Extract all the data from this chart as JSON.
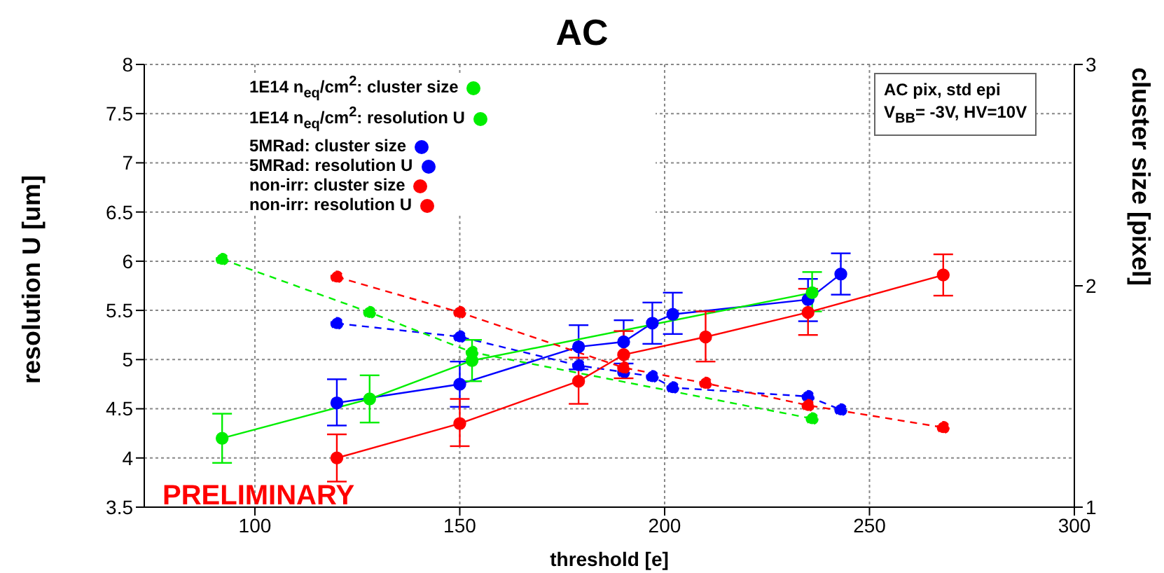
{
  "chart_data": {
    "type": "line",
    "title": "AC",
    "xlabel": "threshold [e]",
    "ylabel": "resolution U [um]",
    "y2label": "cluster size [pixel]",
    "xlim": [
      73,
      300
    ],
    "xticks": [
      100,
      150,
      200,
      250,
      300
    ],
    "ylim": [
      3.5,
      8
    ],
    "yticks": [
      3.5,
      4,
      4.5,
      5,
      5.5,
      6,
      6.5,
      7,
      7.5,
      8
    ],
    "y2lim": [
      1,
      3
    ],
    "y2ticks": [
      1,
      2,
      3
    ],
    "grid": true,
    "legend": "top",
    "marker": "circle",
    "annotations": [
      "AC pix, std epi",
      "V$_{BB}$= -3V, HV=10V",
      "PRELIMINARY"
    ],
    "series": [
      {
        "name": "non-irr: resolution U",
        "color": "#ff0000",
        "line_style": "solid",
        "x": [
          120,
          150,
          179,
          190,
          210,
          235,
          268
        ],
        "values": [
          4.0,
          4.35,
          4.78,
          5.05,
          5.23,
          5.48,
          5.86
        ],
        "errors": [
          [
            3.76,
            4.24
          ],
          [
            4.12,
            4.6
          ],
          [
            4.55,
            5.02
          ],
          [
            4.81,
            5.29
          ],
          [
            4.98,
            5.49
          ],
          [
            5.25,
            5.72
          ],
          [
            5.65,
            6.07
          ]
        ]
      },
      {
        "name": "non-irr: cluster size",
        "color": "#ff0000",
        "line_style": "dashed",
        "axis": "y2",
        "x": [
          120,
          150,
          190,
          210,
          235,
          268
        ],
        "values": [
          2.04,
          1.88,
          1.63,
          1.56,
          1.46,
          1.36
        ]
      },
      {
        "name": "1E14 n$_{eq}$/cm$^{2}$: resolution U",
        "color": "#00ee00",
        "line_style": "solid",
        "x": [
          92,
          128,
          153,
          236
        ],
        "values": [
          4.2,
          4.6,
          4.99,
          5.68
        ],
        "errors": [
          [
            3.95,
            4.45
          ],
          [
            4.36,
            4.84
          ],
          [
            4.78,
            5.2
          ],
          [
            5.49,
            5.89
          ]
        ]
      },
      {
        "name": "1E14 n$_{eq}$/cm$^{2}$: cluster size",
        "color": "#00ee00",
        "line_style": "dashed",
        "axis": "y2",
        "x": [
          92,
          128,
          153,
          236
        ],
        "values": [
          2.12,
          1.88,
          1.7,
          1.4
        ]
      },
      {
        "name": "5MRad: resolution U",
        "color": "#0000ff",
        "line_style": "solid",
        "x": [
          120,
          150,
          179,
          190,
          197,
          202,
          235,
          243
        ],
        "values": [
          4.56,
          4.75,
          5.13,
          5.18,
          5.37,
          5.46,
          5.61,
          5.87
        ],
        "errors": [
          [
            4.33,
            4.8
          ],
          [
            4.52,
            4.98
          ],
          [
            4.9,
            5.35
          ],
          [
            4.96,
            5.4
          ],
          [
            5.16,
            5.58
          ],
          [
            5.26,
            5.68
          ],
          [
            5.39,
            5.82
          ],
          [
            5.66,
            6.08
          ]
        ]
      },
      {
        "name": "5MRad: cluster size",
        "color": "#0000ff",
        "line_style": "dashed",
        "axis": "y2",
        "x": [
          120,
          150,
          179,
          190,
          197,
          202,
          235,
          243
        ],
        "values": [
          1.83,
          1.77,
          1.64,
          1.61,
          1.59,
          1.54,
          1.5,
          1.44
        ]
      }
    ]
  }
}
